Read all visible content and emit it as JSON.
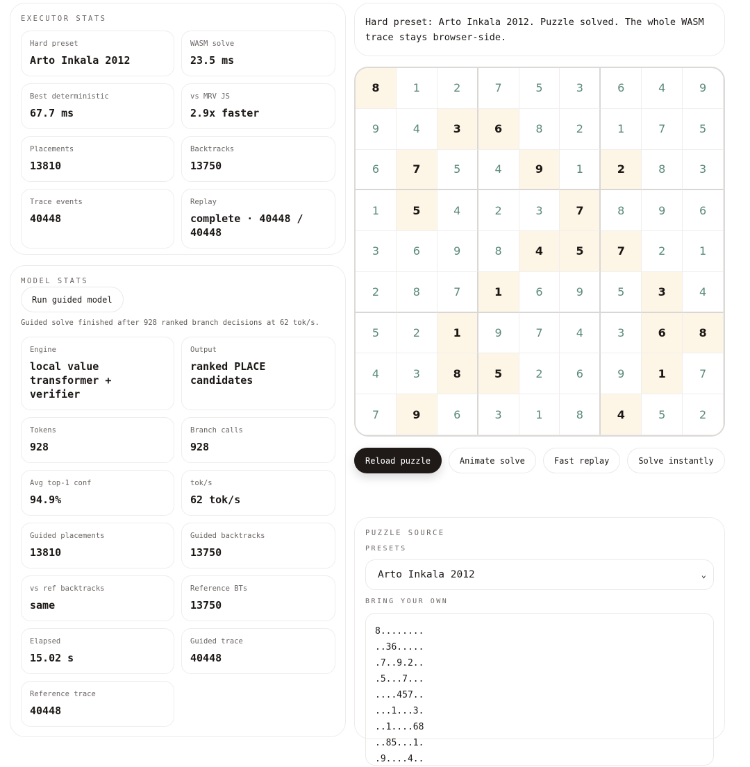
{
  "executor": {
    "title": "EXECUTOR STATS",
    "cards": [
      {
        "label": "Hard preset",
        "value": "Arto Inkala 2012"
      },
      {
        "label": "WASM solve",
        "value": "23.5 ms"
      },
      {
        "label": "Best deterministic",
        "value": "67.7 ms"
      },
      {
        "label": "vs MRV JS",
        "value": "2.9x faster"
      },
      {
        "label": "Placements",
        "value": "13810"
      },
      {
        "label": "Backtracks",
        "value": "13750"
      },
      {
        "label": "Trace events",
        "value": "40448"
      },
      {
        "label": "Replay",
        "value": "complete · 40448 / 40448"
      }
    ]
  },
  "model": {
    "title": "MODEL STATS",
    "run_button": "Run guided model",
    "status": "Guided solve finished after 928 ranked branch decisions at 62 tok/s.",
    "cards": [
      {
        "label": "Engine",
        "value": "local value transformer + verifier"
      },
      {
        "label": "Output",
        "value": "ranked PLACE candidates"
      },
      {
        "label": "Tokens",
        "value": "928"
      },
      {
        "label": "Branch calls",
        "value": "928"
      },
      {
        "label": "Avg top-1 conf",
        "value": "94.9%"
      },
      {
        "label": "tok/s",
        "value": "62 tok/s"
      },
      {
        "label": "Guided placements",
        "value": "13810"
      },
      {
        "label": "Guided backtracks",
        "value": "13750"
      },
      {
        "label": "vs ref backtracks",
        "value": "same"
      },
      {
        "label": "Reference BTs",
        "value": "13750"
      },
      {
        "label": "Elapsed",
        "value": "15.02 s"
      },
      {
        "label": "Guided trace",
        "value": "40448"
      },
      {
        "label": "Reference trace",
        "value": "40448"
      }
    ]
  },
  "status_message": "Hard preset: Arto Inkala 2012. Puzzle solved. The whole WASM trace stays browser-side.",
  "board": {
    "solution": [
      "812753649",
      "943682175",
      "675491283",
      "154237896",
      "369845721",
      "287169534",
      "521974368",
      "438526917",
      "796318452"
    ],
    "givens": [
      "8........",
      "..36.....",
      ".7..9.2..",
      ".5...7...",
      "....457..",
      "...1...3.",
      "..1....68",
      "..85...1.",
      ".9....4.."
    ],
    "given_bg": "#fdf6e6",
    "solved_color": "#5a8a78"
  },
  "actions": {
    "reload": "Reload puzzle",
    "animate": "Animate solve",
    "fast": "Fast replay",
    "instant": "Solve instantly"
  },
  "source": {
    "title": "PUZZLE SOURCE",
    "presets_label": "PRESETS",
    "preset_value": "Arto Inkala 2012",
    "byo_label": "BRING YOUR OWN",
    "byo_text": "8........\n..36.....\n.7..9.2..\n.5...7...\n....457..\n...1...3.\n..1....68\n..85...1.\n.9....4.."
  }
}
